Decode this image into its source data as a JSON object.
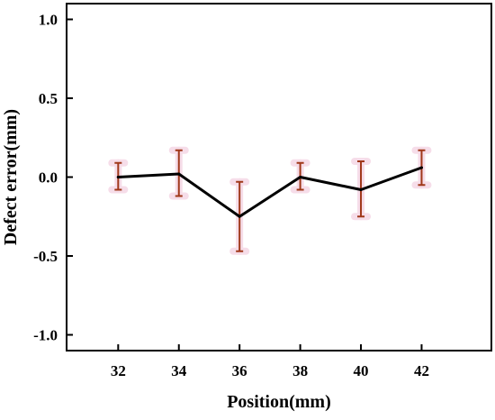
{
  "chart_data": {
    "type": "line",
    "title": "",
    "xlabel": "Position(mm)",
    "ylabel": "Defect error(mm)",
    "x": [
      32,
      34,
      36,
      38,
      40,
      42
    ],
    "series": [
      {
        "values": [
          0.0,
          0.02,
          -0.25,
          0.0,
          -0.08,
          0.06
        ],
        "error_lower": [
          0.08,
          0.14,
          0.22,
          0.08,
          0.17,
          0.11
        ],
        "error_upper": [
          0.09,
          0.15,
          0.22,
          0.09,
          0.18,
          0.11
        ],
        "line_color": "#000000",
        "errorbar_color": "#a0381a",
        "highlight_color": "#f6dce8"
      }
    ],
    "xlim": [
      30.3,
      44.3
    ],
    "ylim": [
      -1.1,
      1.1
    ],
    "xticks": [
      32,
      34,
      36,
      38,
      40,
      42
    ],
    "yticks": [
      -1.0,
      -0.5,
      0.0,
      0.5,
      1.0
    ],
    "xtick_labels": [
      "32",
      "34",
      "36",
      "38",
      "40",
      "42"
    ],
    "ytick_labels": [
      "-1.0",
      "-0.5",
      "0.0",
      "0.5",
      "1.0"
    ],
    "grid": false,
    "legend": "none"
  }
}
